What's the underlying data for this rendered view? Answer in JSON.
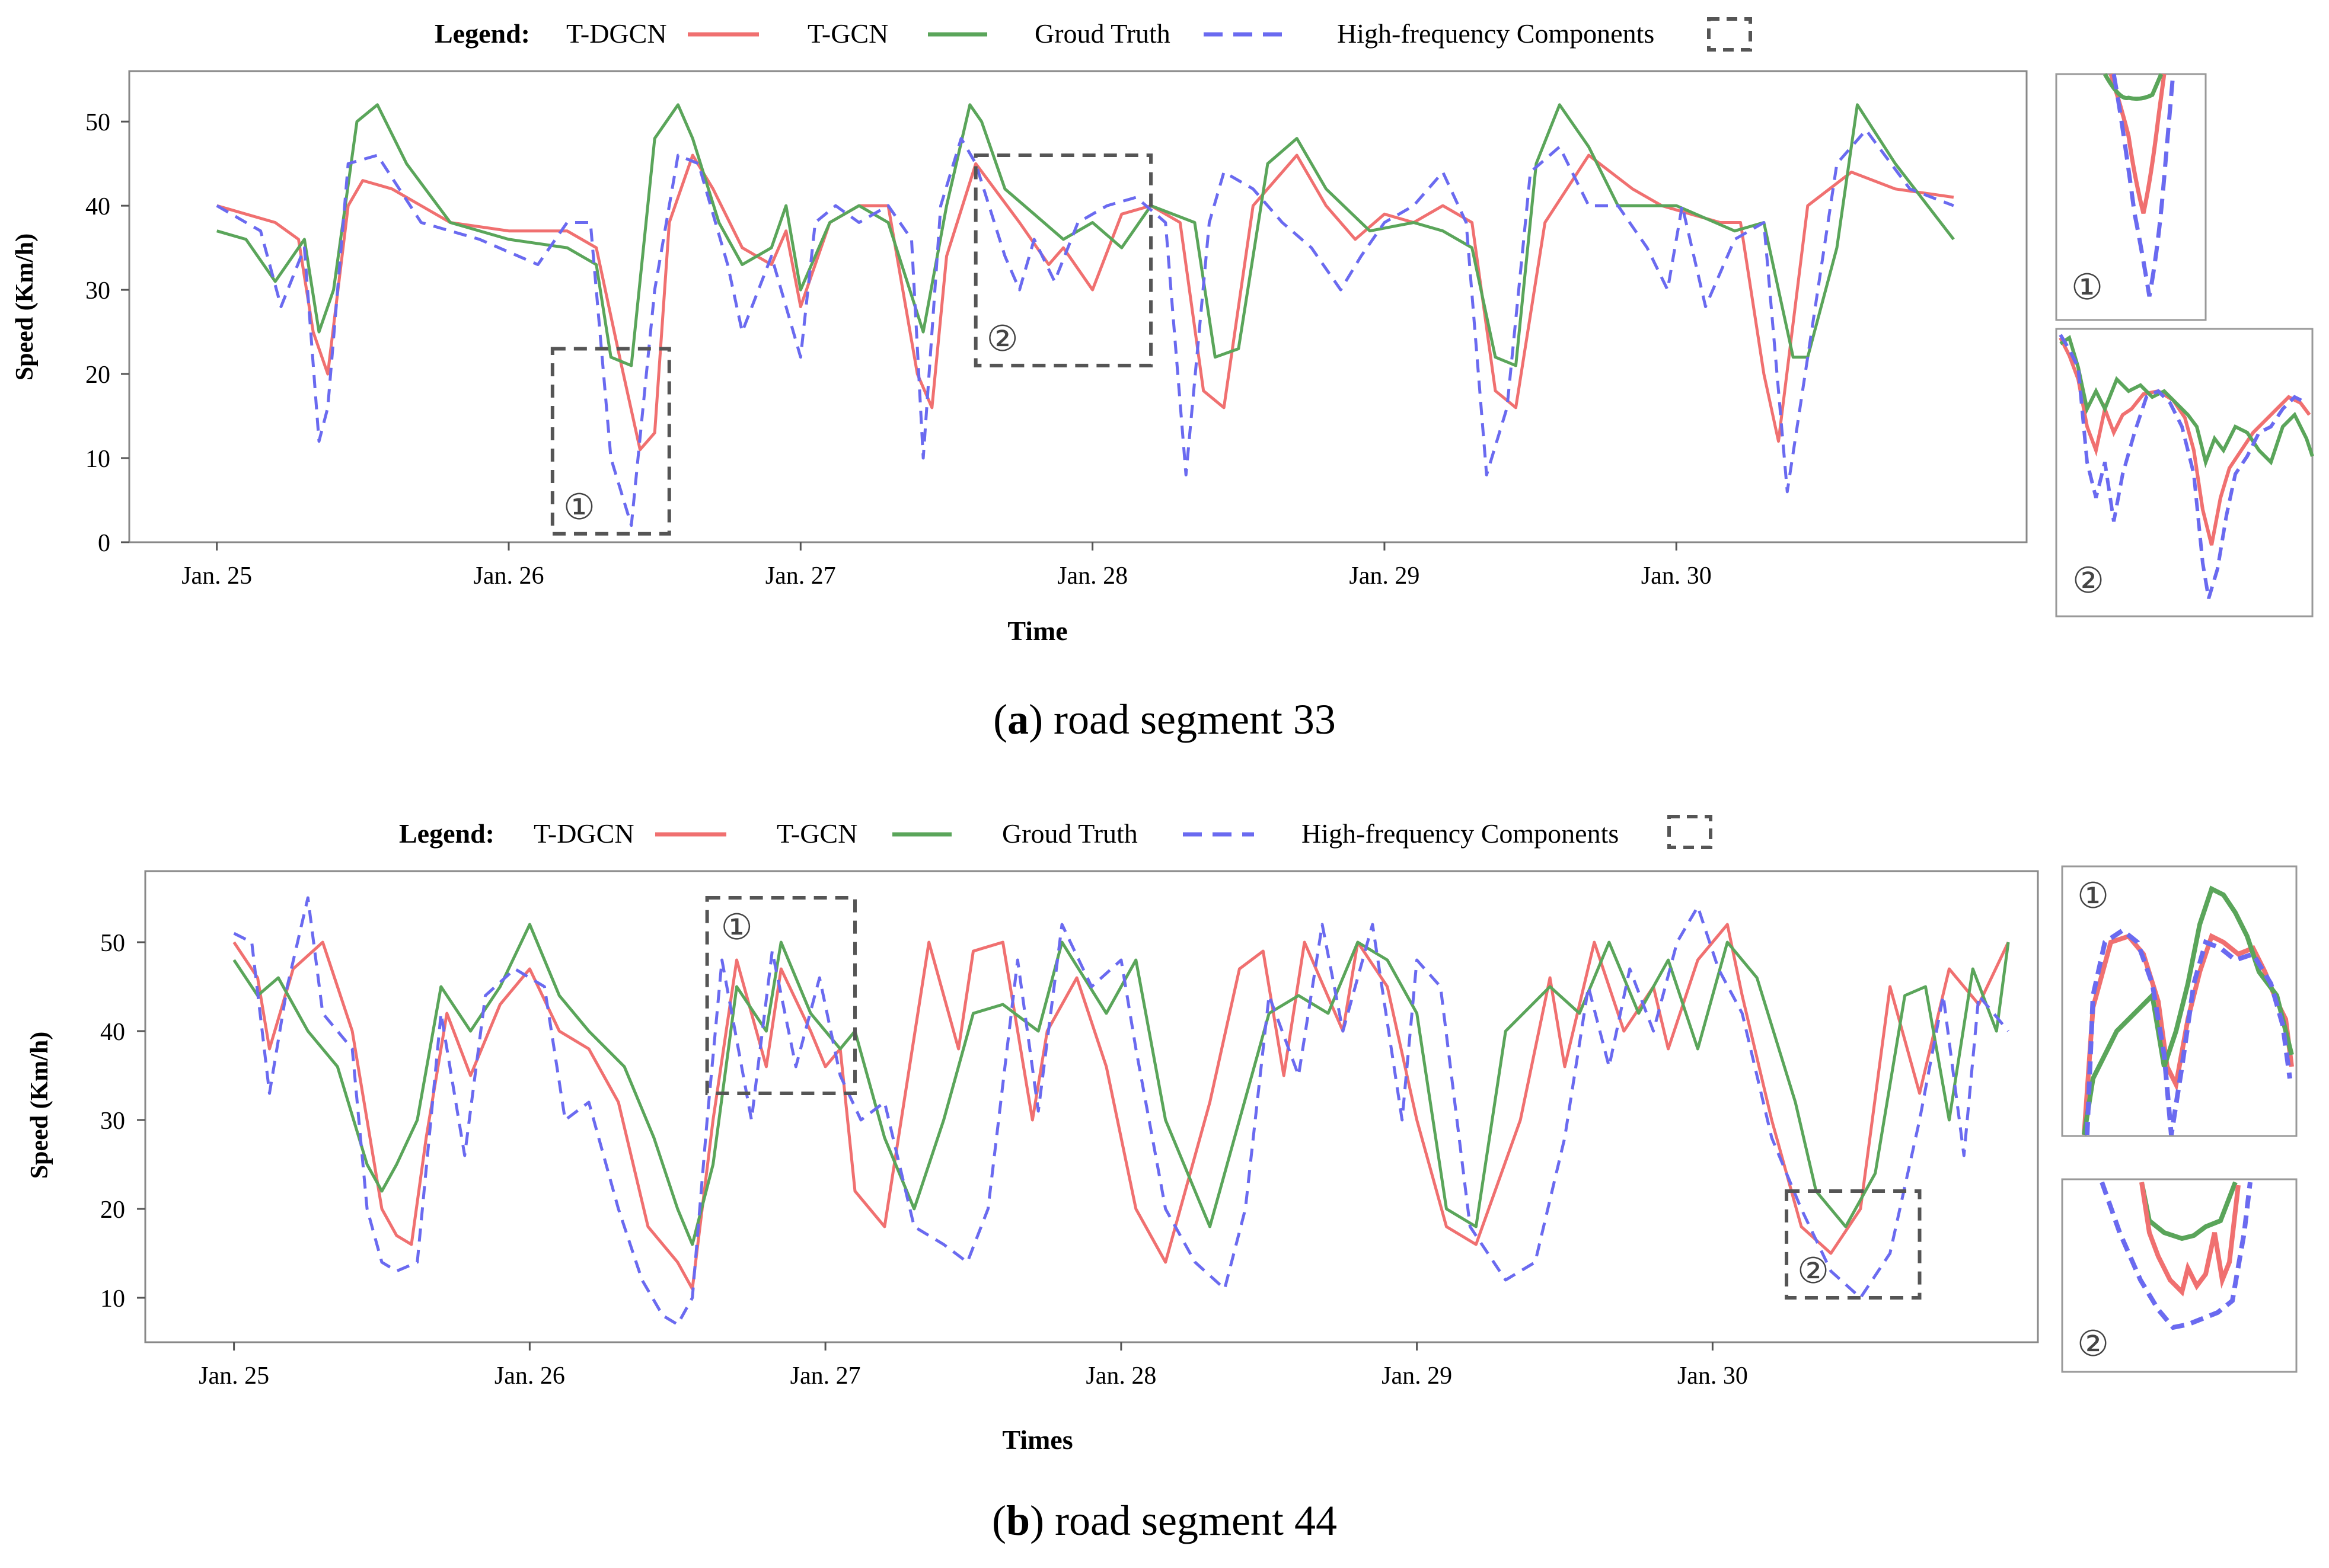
{
  "figure": {
    "panels": [
      {
        "id": "a",
        "caption_letter": "a",
        "caption_text": "road segment 33",
        "legend_title": "Legend:",
        "legend_items": [
          "T-DGCN",
          "T-GCN",
          "Groud Truth",
          "High-frequency Components"
        ],
        "xlabel": "Time",
        "ylabel": "Speed (Km/h)",
        "box_labels": [
          "①",
          "②"
        ]
      },
      {
        "id": "b",
        "caption_letter": "b",
        "caption_text": "road segment 44",
        "legend_title": "Legend:",
        "legend_items": [
          "T-DGCN",
          "T-GCN",
          "Groud Truth",
          "High-frequency Components"
        ],
        "xlabel": "Times",
        "ylabel": "Speed (Km/h)",
        "box_labels": [
          "①",
          "②"
        ]
      }
    ]
  },
  "colors": {
    "tdgcn": "#f07070",
    "tgcn": "#5aa55a",
    "truth": "#6a6af0",
    "box": "#555555",
    "axis": "#555555"
  },
  "chart_data": [
    {
      "type": "line",
      "title": "road segment 33",
      "xlabel": "Time",
      "ylabel": "Speed (Km/h)",
      "categories": [
        "Jan. 25",
        "Jan. 26",
        "Jan. 27",
        "Jan. 28",
        "Jan. 29",
        "Jan. 30"
      ],
      "xlim": [
        -0.3,
        6.2
      ],
      "ylim": [
        0,
        56
      ],
      "yticks": [
        0,
        10,
        20,
        30,
        40,
        50
      ],
      "series": [
        {
          "name": "T-DGCN",
          "x": [
            0,
            0.1,
            0.2,
            0.28,
            0.33,
            0.38,
            0.45,
            0.5,
            0.6,
            0.8,
            1.0,
            1.2,
            1.3,
            1.38,
            1.45,
            1.5,
            1.55,
            1.63,
            1.7,
            1.8,
            1.9,
            1.95,
            2.0,
            2.1,
            2.2,
            2.3,
            2.4,
            2.45,
            2.5,
            2.6,
            2.75,
            2.85,
            2.9,
            3.0,
            3.1,
            3.2,
            3.3,
            3.38,
            3.45,
            3.55,
            3.7,
            3.8,
            3.9,
            4.0,
            4.1,
            4.2,
            4.3,
            4.38,
            4.45,
            4.55,
            4.7,
            4.85,
            4.95,
            5.05,
            5.15,
            5.22,
            5.3,
            5.35,
            5.45,
            5.6,
            5.75,
            5.95
          ],
          "y": [
            40,
            39,
            38,
            36,
            25,
            20,
            40,
            43,
            42,
            38,
            37,
            37,
            35,
            22,
            11,
            13,
            38,
            46,
            42,
            35,
            33,
            37,
            28,
            38,
            40,
            40,
            20,
            16,
            34,
            45,
            38,
            33,
            35,
            30,
            39,
            40,
            38,
            18,
            16,
            40,
            46,
            40,
            36,
            39,
            38,
            40,
            38,
            18,
            16,
            38,
            46,
            42,
            40,
            39,
            38,
            38,
            20,
            12,
            40,
            44,
            42,
            41
          ]
        },
        {
          "name": "T-GCN",
          "x": [
            0,
            0.1,
            0.2,
            0.3,
            0.35,
            0.4,
            0.48,
            0.55,
            0.65,
            0.8,
            1.0,
            1.2,
            1.3,
            1.35,
            1.42,
            1.5,
            1.58,
            1.63,
            1.72,
            1.8,
            1.9,
            1.95,
            2.0,
            2.1,
            2.2,
            2.3,
            2.42,
            2.5,
            2.58,
            2.62,
            2.7,
            2.8,
            2.9,
            3.0,
            3.1,
            3.2,
            3.35,
            3.42,
            3.5,
            3.6,
            3.7,
            3.8,
            3.95,
            4.1,
            4.2,
            4.3,
            4.38,
            4.45,
            4.52,
            4.6,
            4.7,
            4.8,
            5.0,
            5.2,
            5.3,
            5.4,
            5.45,
            5.55,
            5.62,
            5.75,
            5.95
          ],
          "y": [
            37,
            36,
            31,
            36,
            25,
            30,
            50,
            52,
            45,
            38,
            36,
            35,
            33,
            22,
            21,
            48,
            52,
            48,
            38,
            33,
            35,
            40,
            30,
            38,
            40,
            38,
            25,
            40,
            52,
            50,
            42,
            39,
            36,
            38,
            35,
            40,
            38,
            22,
            23,
            45,
            48,
            42,
            37,
            38,
            37,
            35,
            22,
            21,
            45,
            52,
            47,
            40,
            40,
            37,
            38,
            22,
            22,
            35,
            52,
            45,
            36
          ]
        },
        {
          "name": "Groud Truth",
          "x": [
            0,
            0.1,
            0.15,
            0.22,
            0.3,
            0.35,
            0.38,
            0.45,
            0.55,
            0.7,
            0.9,
            1.1,
            1.2,
            1.28,
            1.35,
            1.42,
            1.5,
            1.58,
            1.65,
            1.75,
            1.8,
            1.9,
            2.0,
            2.05,
            2.12,
            2.2,
            2.3,
            2.38,
            2.42,
            2.48,
            2.55,
            2.6,
            2.7,
            2.75,
            2.8,
            2.87,
            2.95,
            3.05,
            3.15,
            3.25,
            3.32,
            3.4,
            3.45,
            3.55,
            3.65,
            3.75,
            3.85,
            3.92,
            4.0,
            4.1,
            4.2,
            4.28,
            4.35,
            4.42,
            4.5,
            4.6,
            4.7,
            4.8,
            4.9,
            4.97,
            5.02,
            5.1,
            5.2,
            5.3,
            5.38,
            5.45,
            5.55,
            5.65,
            5.8,
            5.95
          ],
          "y": [
            40,
            38,
            37,
            28,
            35,
            12,
            16,
            45,
            46,
            38,
            36,
            33,
            38,
            38,
            10,
            2,
            30,
            46,
            45,
            33,
            25,
            34,
            22,
            38,
            40,
            38,
            40,
            36,
            10,
            40,
            48,
            45,
            34,
            30,
            36,
            31,
            38,
            40,
            41,
            38,
            8,
            38,
            44,
            42,
            38,
            35,
            30,
            34,
            38,
            40,
            44,
            38,
            8,
            16,
            44,
            47,
            40,
            40,
            35,
            30,
            40,
            28,
            36,
            38,
            6,
            22,
            45,
            49,
            42,
            40
          ]
        }
      ],
      "annotations": [
        {
          "label": "①",
          "x_range": [
            1.15,
            1.55
          ],
          "y_range": [
            1,
            23
          ]
        },
        {
          "label": "②",
          "x_range": [
            2.6,
            3.2
          ],
          "y_range": [
            21,
            46
          ]
        }
      ]
    },
    {
      "type": "line",
      "title": "road segment 44",
      "xlabel": "Times",
      "ylabel": "Speed (Km/h)",
      "categories": [
        "Jan. 25",
        "Jan. 26",
        "Jan. 27",
        "Jan. 28",
        "Jan. 29",
        "Jan. 30"
      ],
      "xlim": [
        -0.3,
        6.1
      ],
      "ylim": [
        5,
        58
      ],
      "yticks": [
        10,
        20,
        30,
        40,
        50
      ],
      "series": [
        {
          "name": "T-DGCN",
          "x": [
            0,
            0.08,
            0.12,
            0.2,
            0.3,
            0.4,
            0.5,
            0.55,
            0.6,
            0.65,
            0.72,
            0.8,
            0.9,
            1.0,
            1.1,
            1.2,
            1.3,
            1.4,
            1.5,
            1.55,
            1.62,
            1.7,
            1.8,
            1.85,
            1.95,
            2.0,
            2.05,
            2.1,
            2.2,
            2.35,
            2.45,
            2.5,
            2.6,
            2.7,
            2.75,
            2.85,
            2.95,
            3.05,
            3.15,
            3.3,
            3.4,
            3.48,
            3.55,
            3.62,
            3.75,
            3.8,
            3.9,
            4.0,
            4.1,
            4.2,
            4.35,
            4.45,
            4.5,
            4.6,
            4.7,
            4.8,
            4.85,
            4.95,
            5.05,
            5.1,
            5.2,
            5.3,
            5.4,
            5.5,
            5.6,
            5.7,
            5.8,
            5.9,
            6.0
          ],
          "y": [
            50,
            46,
            38,
            47,
            50,
            40,
            20,
            17,
            16,
            28,
            42,
            35,
            43,
            47,
            40,
            38,
            32,
            18,
            14,
            11,
            30,
            48,
            36,
            47,
            40,
            36,
            38,
            22,
            18,
            50,
            38,
            49,
            50,
            30,
            40,
            46,
            36,
            20,
            14,
            32,
            47,
            49,
            35,
            50,
            40,
            50,
            45,
            30,
            18,
            16,
            30,
            46,
            36,
            50,
            40,
            45,
            38,
            48,
            52,
            44,
            30,
            18,
            15,
            20,
            45,
            33,
            47,
            43,
            50
          ]
        },
        {
          "name": "T-GCN",
          "x": [
            0,
            0.08,
            0.15,
            0.25,
            0.35,
            0.45,
            0.5,
            0.55,
            0.62,
            0.7,
            0.8,
            0.9,
            1.0,
            1.1,
            1.2,
            1.32,
            1.42,
            1.5,
            1.55,
            1.62,
            1.7,
            1.8,
            1.85,
            1.95,
            2.05,
            2.1,
            2.2,
            2.3,
            2.4,
            2.5,
            2.6,
            2.72,
            2.8,
            2.95,
            3.05,
            3.15,
            3.3,
            3.4,
            3.5,
            3.6,
            3.7,
            3.8,
            3.9,
            4.0,
            4.1,
            4.2,
            4.3,
            4.45,
            4.55,
            4.65,
            4.75,
            4.85,
            4.95,
            5.05,
            5.15,
            5.28,
            5.35,
            5.45,
            5.55,
            5.65,
            5.72,
            5.8,
            5.88,
            5.96,
            6.0
          ],
          "y": [
            48,
            44,
            46,
            40,
            36,
            25,
            22,
            25,
            30,
            45,
            40,
            45,
            52,
            44,
            40,
            36,
            28,
            20,
            16,
            25,
            45,
            40,
            50,
            42,
            38,
            40,
            28,
            20,
            30,
            42,
            43,
            40,
            50,
            42,
            48,
            30,
            18,
            30,
            42,
            44,
            42,
            50,
            48,
            42,
            20,
            18,
            40,
            45,
            42,
            50,
            42,
            48,
            38,
            50,
            46,
            32,
            22,
            18,
            24,
            44,
            45,
            30,
            47,
            40,
            50
          ]
        },
        {
          "name": "Groud Truth",
          "x": [
            0,
            0.06,
            0.12,
            0.18,
            0.25,
            0.3,
            0.4,
            0.45,
            0.5,
            0.55,
            0.62,
            0.7,
            0.78,
            0.85,
            0.95,
            1.05,
            1.12,
            1.2,
            1.3,
            1.38,
            1.45,
            1.5,
            1.55,
            1.6,
            1.65,
            1.75,
            1.82,
            1.9,
            1.98,
            2.05,
            2.12,
            2.2,
            2.3,
            2.4,
            2.48,
            2.55,
            2.65,
            2.72,
            2.8,
            2.9,
            3.0,
            3.05,
            3.15,
            3.25,
            3.35,
            3.42,
            3.5,
            3.6,
            3.68,
            3.75,
            3.85,
            3.95,
            4.0,
            4.08,
            4.18,
            4.3,
            4.4,
            4.5,
            4.58,
            4.65,
            4.72,
            4.8,
            4.88,
            4.95,
            5.02,
            5.1,
            5.2,
            5.3,
            5.4,
            5.5,
            5.6,
            5.7,
            5.78,
            5.85,
            5.9,
            6.0
          ],
          "y": [
            51,
            50,
            33,
            45,
            55,
            42,
            38,
            20,
            14,
            13,
            14,
            42,
            26,
            44,
            47,
            45,
            30,
            32,
            20,
            12,
            8,
            7,
            10,
            30,
            48,
            30,
            49,
            36,
            46,
            35,
            30,
            32,
            18,
            16,
            14,
            20,
            48,
            31,
            52,
            45,
            48,
            38,
            20,
            14,
            11,
            20,
            44,
            35,
            52,
            40,
            52,
            30,
            48,
            45,
            18,
            12,
            14,
            28,
            45,
            36,
            47,
            40,
            50,
            54,
            47,
            42,
            28,
            20,
            13,
            10,
            15,
            30,
            44,
            26,
            44,
            40
          ]
        }
      ],
      "annotations": [
        {
          "label": "①",
          "x_range": [
            1.6,
            2.1
          ],
          "y_range": [
            33,
            55
          ]
        },
        {
          "label": "②",
          "x_range": [
            5.25,
            5.7
          ],
          "y_range": [
            10,
            22
          ]
        }
      ]
    }
  ],
  "insets": [
    {
      "panel": "a",
      "labels": [
        "①",
        "②"
      ]
    },
    {
      "panel": "b",
      "labels": [
        "①",
        "②"
      ]
    }
  ]
}
